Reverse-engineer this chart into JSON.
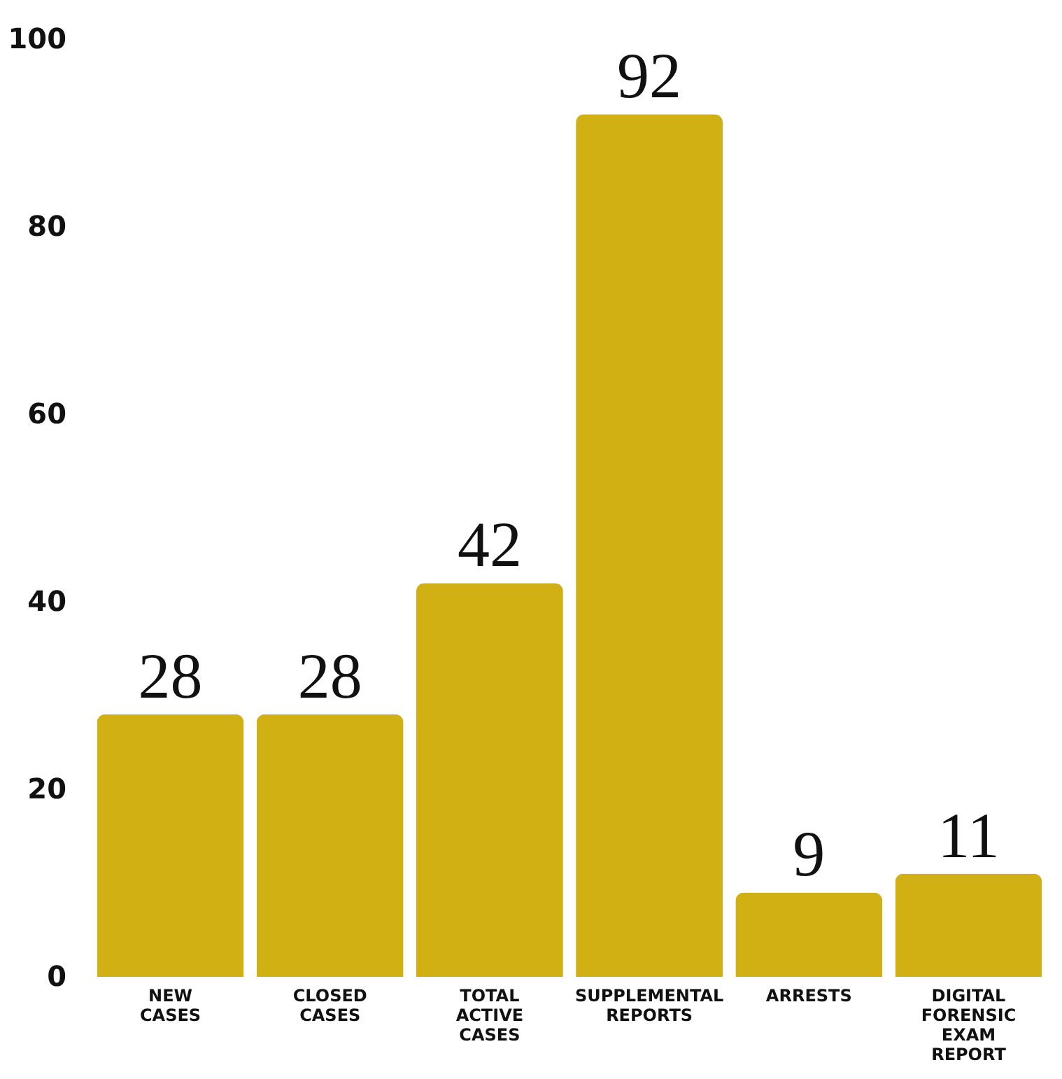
{
  "chart_data": {
    "type": "bar",
    "categories": [
      "NEW CASES",
      "CLOSED CASES",
      "TOTAL ACTIVE CASES",
      "SUPPLEMENTAL REPORTS",
      "ARRESTS",
      "DIGITAL FORENSIC EXAM REPORT"
    ],
    "values": [
      28,
      28,
      42,
      92,
      9,
      11
    ],
    "color": "#d1b013",
    "ylim": [
      0,
      100
    ],
    "yticks": [
      0,
      20,
      40,
      60,
      80,
      100
    ],
    "grid": false,
    "data_labels": true
  }
}
